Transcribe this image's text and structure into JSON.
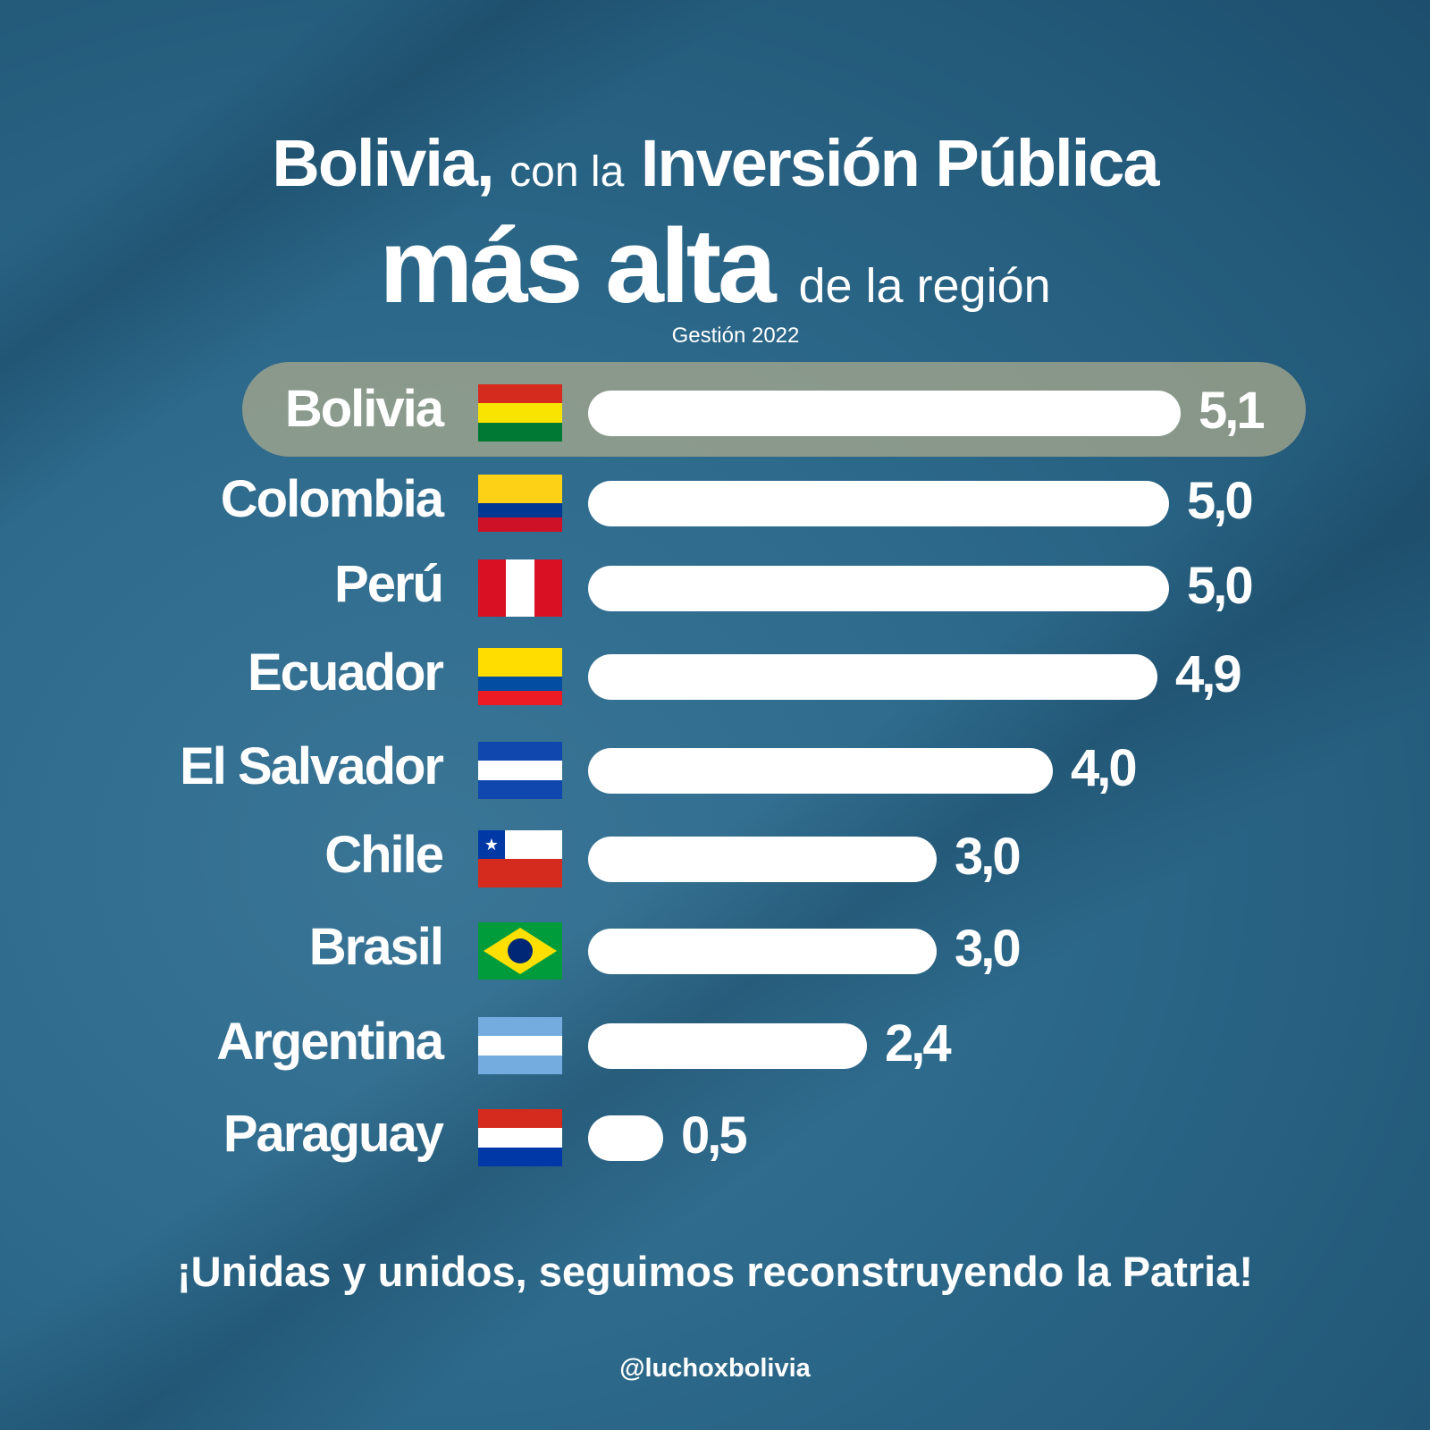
{
  "title": {
    "line1_bold1": "Bolivia,",
    "line1_thin": "con la",
    "line1_bold2": "Inversión Pública",
    "line2_bold": "más alta",
    "line2_thin": "de la región",
    "subtitle": "Gestión 2022"
  },
  "chart_data": {
    "type": "bar",
    "orientation": "horizontal",
    "title": "Bolivia, con la Inversión Pública más alta de la región",
    "subtitle": "Gestión 2022",
    "categories": [
      "Bolivia",
      "Colombia",
      "Perú",
      "Ecuador",
      "El Salvador",
      "Chile",
      "Brasil",
      "Argentina",
      "Paraguay"
    ],
    "values": [
      5.1,
      5.0,
      5.0,
      4.9,
      4.0,
      3.0,
      3.0,
      2.4,
      0.5
    ],
    "value_labels": [
      "5,1",
      "5,0",
      "5,0",
      "4,9",
      "4,0",
      "3,0",
      "3,0",
      "2,4",
      "0,5"
    ],
    "highlight": "Bolivia",
    "bar_color": "#ffffff",
    "highlight_color": "#a9a98a"
  },
  "flags": {
    "Bolivia": [
      "#d52b1e",
      "#f9e300",
      "#007934"
    ],
    "Colombia": [
      "#fcd116",
      "#fcd116",
      "#003893",
      "#ce1126"
    ],
    "Perú": "vertical:#d91023,#ffffff,#d91023",
    "Ecuador": [
      "#ffdd00",
      "#ffdd00",
      "#034ea2",
      "#ed1c24"
    ],
    "El Salvador": [
      "#0f47af",
      "#ffffff",
      "#0f47af"
    ],
    "Chile": [
      "#ffffff",
      "#d52b1e"
    ],
    "Brasil": "#009c3b",
    "Argentina": [
      "#74acdf",
      "#ffffff",
      "#74acdf"
    ],
    "Paraguay": [
      "#d52b1e",
      "#ffffff",
      "#0038a8"
    ]
  },
  "footer": {
    "slogan": "¡Unidas y unidos, seguimos reconstruyendo la Patria!",
    "handle": "@luchoxbolivia"
  }
}
